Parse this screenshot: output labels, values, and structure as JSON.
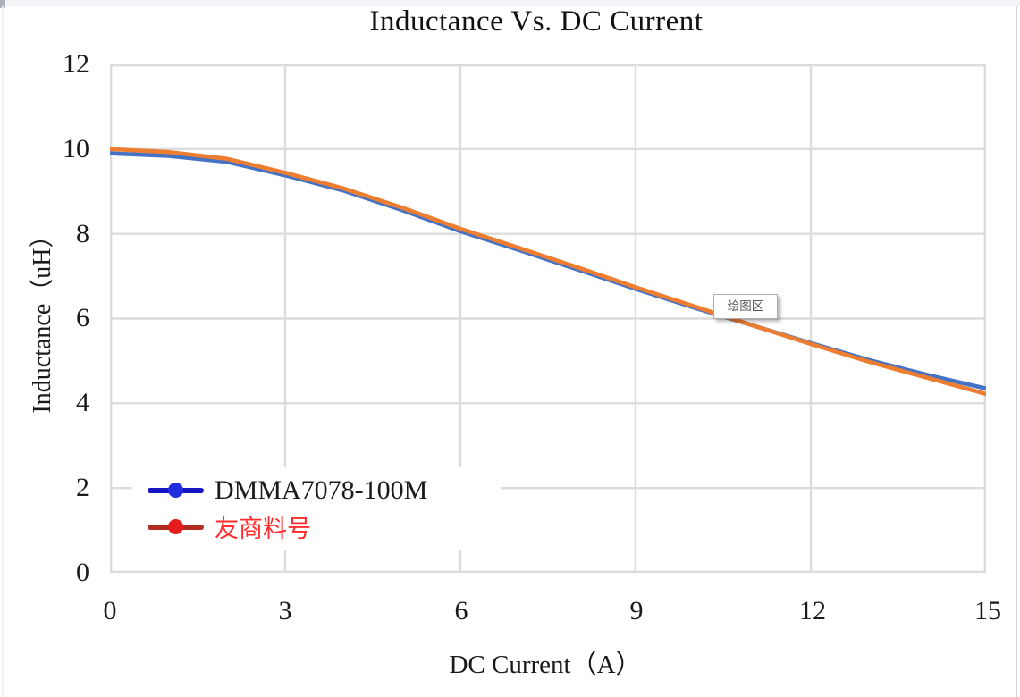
{
  "window": {
    "tooltip_label": "绘图区"
  },
  "chart_data": {
    "type": "line",
    "title": "Inductance Vs. DC Current",
    "xlabel": "DC Current（A）",
    "ylabel": "Inductance（uH）",
    "xlim": [
      0,
      15
    ],
    "ylim": [
      0,
      12
    ],
    "xticks": [
      0,
      3,
      6,
      9,
      12,
      15
    ],
    "yticks": [
      0,
      2,
      4,
      6,
      8,
      10,
      12
    ],
    "grid": true,
    "grid_color": "#DCDCDC",
    "legend_position": "inside-bottom-left",
    "x": [
      0,
      1,
      2,
      3,
      4,
      5,
      6,
      7,
      8,
      9,
      10,
      11,
      12,
      13,
      14,
      15
    ],
    "series": [
      {
        "name": "DMMA7078-100M",
        "line_color": "#4472C4",
        "legend_line_color": "#1515C2",
        "legend_dot_color": "#1F2FE0",
        "label_color": "#1A1A1A",
        "values": [
          9.9,
          9.84,
          9.7,
          9.38,
          9.02,
          8.56,
          8.06,
          7.62,
          7.16,
          6.7,
          6.26,
          5.84,
          5.42,
          5.02,
          4.67,
          4.35
        ]
      },
      {
        "name": "友商料号",
        "line_color": "#ED7D31",
        "legend_line_color": "#B02B20",
        "legend_dot_color": "#E31B1B",
        "label_color": "#FF2D2D",
        "values": [
          10.0,
          9.93,
          9.77,
          9.44,
          9.07,
          8.62,
          8.12,
          7.67,
          7.21,
          6.74,
          6.29,
          5.84,
          5.4,
          4.98,
          4.6,
          4.22
        ]
      }
    ]
  }
}
